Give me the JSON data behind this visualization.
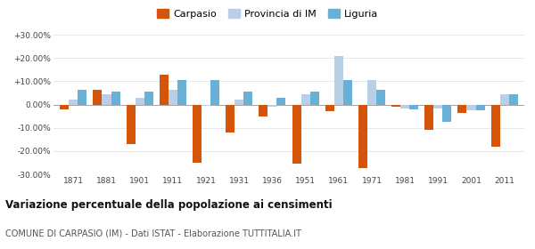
{
  "years": [
    1871,
    1881,
    1901,
    1911,
    1921,
    1931,
    1936,
    1951,
    1961,
    1971,
    1981,
    1991,
    2001,
    2011
  ],
  "carpasio": [
    -2.0,
    6.5,
    -17.0,
    13.0,
    -25.0,
    -12.0,
    -5.0,
    -25.5,
    -3.0,
    -27.5,
    -1.0,
    -11.0,
    -3.5,
    -18.0
  ],
  "provincia_im": [
    2.0,
    4.5,
    3.0,
    6.5,
    -0.5,
    2.0,
    -1.0,
    4.5,
    21.0,
    10.5,
    -1.5,
    -1.5,
    -2.5,
    4.5
  ],
  "liguria": [
    6.5,
    5.5,
    5.5,
    10.5,
    10.5,
    5.5,
    3.0,
    5.5,
    10.5,
    6.5,
    -2.0,
    -7.5,
    -2.5,
    4.5
  ],
  "color_carpasio": "#d4540a",
  "color_provincia": "#b8cfe8",
  "color_liguria": "#6aafd6",
  "ylim": [
    -30,
    30
  ],
  "ytick_labels": [
    "-30.00%",
    "-20.00%",
    "-10.00%",
    "0.00%",
    "+10.00%",
    "+20.00%",
    "+30.00%"
  ],
  "title": "Variazione percentuale della popolazione ai censimenti",
  "subtitle": "COMUNE DI CARPASIO (IM) - Dati ISTAT - Elaborazione TUTTITALIA.IT",
  "legend_labels": [
    "Carpasio",
    "Provincia di IM",
    "Liguria"
  ]
}
